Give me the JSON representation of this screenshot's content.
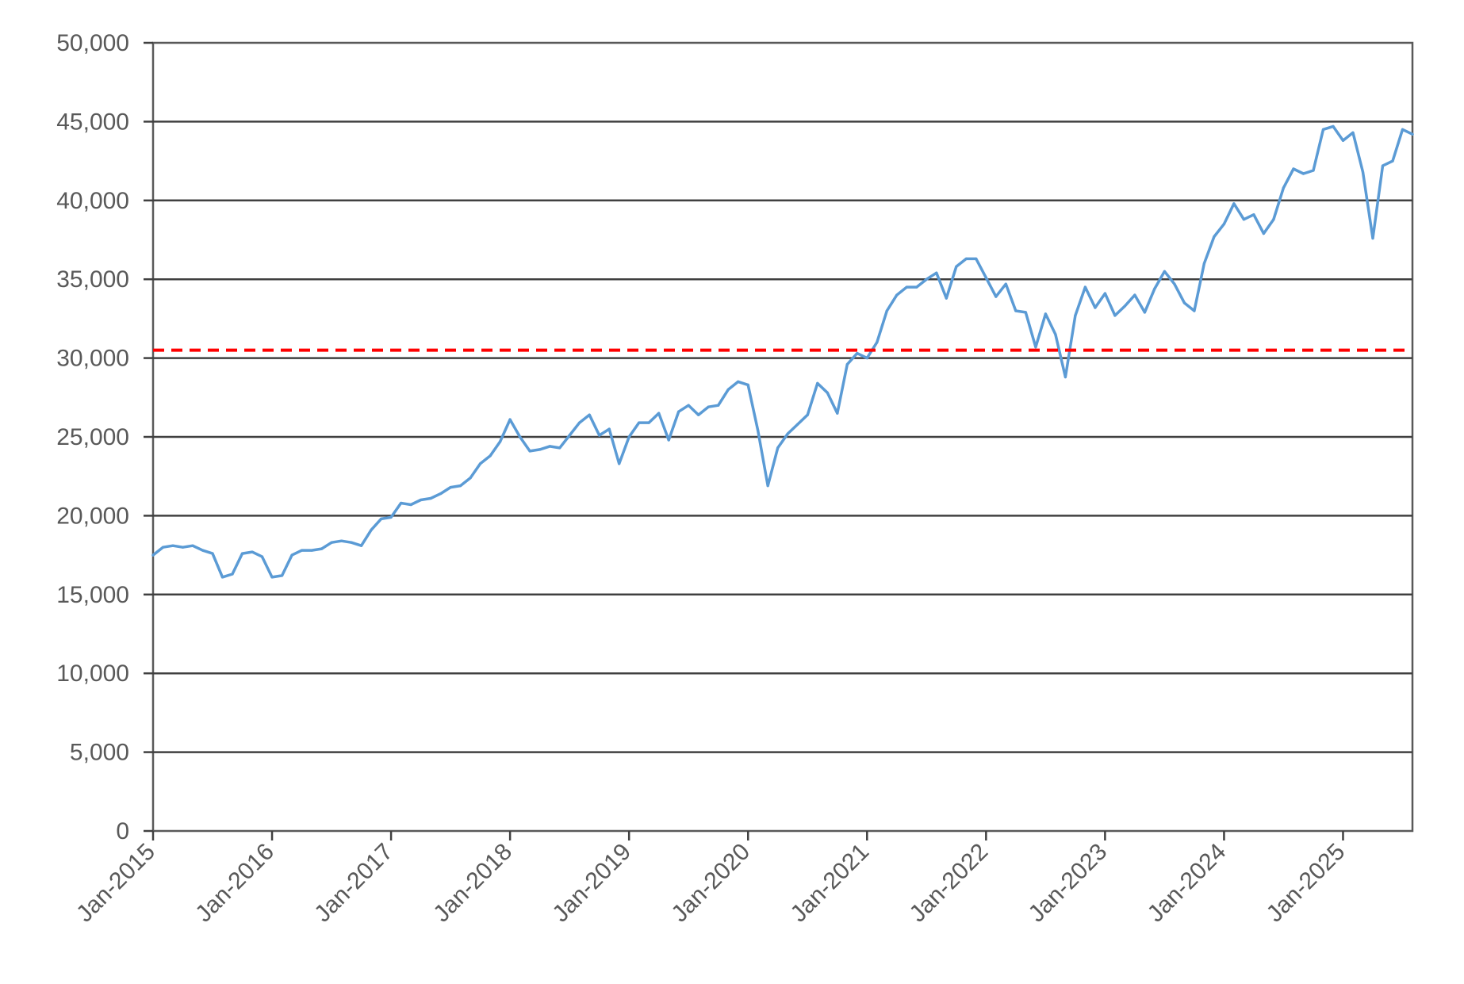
{
  "chart_data": {
    "type": "line",
    "title": "",
    "xlabel": "",
    "ylabel": "",
    "ylim": [
      0,
      50000
    ],
    "xlim": [
      "2015-01",
      "2025-08"
    ],
    "grid": true,
    "legend": "none",
    "y_ticks": [
      "0",
      "5,000",
      "10,000",
      "15,000",
      "20,000",
      "25,000",
      "30,000",
      "35,000",
      "40,000",
      "45,000",
      "50,000"
    ],
    "x_ticks": [
      "Jan-2015",
      "Jan-2016",
      "Jan-2017",
      "Jan-2018",
      "Jan-2019",
      "Jan-2020",
      "Jan-2021",
      "Jan-2022",
      "Jan-2023",
      "Jan-2024",
      "Jan-2025"
    ],
    "reference_line": {
      "value": 30500,
      "style": "dashed",
      "color": "#ff0000"
    },
    "series": [
      {
        "color": "#5b9bd5",
        "x": [
          "2015-01",
          "2015-02",
          "2015-03",
          "2015-04",
          "2015-05",
          "2015-06",
          "2015-07",
          "2015-08",
          "2015-09",
          "2015-10",
          "2015-11",
          "2015-12",
          "2016-01",
          "2016-02",
          "2016-03",
          "2016-04",
          "2016-05",
          "2016-06",
          "2016-07",
          "2016-08",
          "2016-09",
          "2016-10",
          "2016-11",
          "2016-12",
          "2017-01",
          "2017-02",
          "2017-03",
          "2017-04",
          "2017-05",
          "2017-06",
          "2017-07",
          "2017-08",
          "2017-09",
          "2017-10",
          "2017-11",
          "2017-12",
          "2018-01",
          "2018-02",
          "2018-03",
          "2018-04",
          "2018-05",
          "2018-06",
          "2018-07",
          "2018-08",
          "2018-09",
          "2018-10",
          "2018-11",
          "2018-12",
          "2019-01",
          "2019-02",
          "2019-03",
          "2019-04",
          "2019-05",
          "2019-06",
          "2019-07",
          "2019-08",
          "2019-09",
          "2019-10",
          "2019-11",
          "2019-12",
          "2020-01",
          "2020-02",
          "2020-03",
          "2020-04",
          "2020-05",
          "2020-06",
          "2020-07",
          "2020-08",
          "2020-09",
          "2020-10",
          "2020-11",
          "2020-12",
          "2021-01",
          "2021-02",
          "2021-03",
          "2021-04",
          "2021-05",
          "2021-06",
          "2021-07",
          "2021-08",
          "2021-09",
          "2021-10",
          "2021-11",
          "2021-12",
          "2022-01",
          "2022-02",
          "2022-03",
          "2022-04",
          "2022-05",
          "2022-06",
          "2022-07",
          "2022-08",
          "2022-09",
          "2022-10",
          "2022-11",
          "2022-12",
          "2023-01",
          "2023-02",
          "2023-03",
          "2023-04",
          "2023-05",
          "2023-06",
          "2023-07",
          "2023-08",
          "2023-09",
          "2023-10",
          "2023-11",
          "2023-12",
          "2024-01",
          "2024-02",
          "2024-03",
          "2024-04",
          "2024-05",
          "2024-06",
          "2024-07",
          "2024-08",
          "2024-09",
          "2024-10",
          "2024-11",
          "2024-12",
          "2025-01",
          "2025-02",
          "2025-03",
          "2025-04",
          "2025-05",
          "2025-06",
          "2025-07",
          "2025-08"
        ],
        "values": [
          17500,
          18000,
          18100,
          18000,
          18100,
          17800,
          17600,
          16100,
          16300,
          17600,
          17700,
          17400,
          16100,
          16200,
          17500,
          17800,
          17800,
          17900,
          18300,
          18400,
          18300,
          18100,
          19100,
          19800,
          19900,
          20800,
          20700,
          21000,
          21100,
          21400,
          21800,
          21900,
          22400,
          23300,
          23800,
          24700,
          26100,
          25000,
          24100,
          24200,
          24400,
          24300,
          25100,
          25900,
          26400,
          25100,
          25500,
          23300,
          25000,
          25900,
          25900,
          26500,
          24800,
          26600,
          27000,
          26400,
          26900,
          27000,
          28000,
          28500,
          28300,
          25400,
          21900,
          24300,
          25200,
          25800,
          26400,
          28400,
          27800,
          26500,
          29600,
          30300,
          30000,
          31000,
          33000,
          34000,
          34500,
          34500,
          35000,
          35400,
          33800,
          35800,
          36300,
          36300,
          35100,
          33900,
          34700,
          33000,
          32900,
          30700,
          32800,
          31500,
          28800,
          32700,
          34500,
          33200,
          34100,
          32700,
          33300,
          34000,
          32900,
          34400,
          35500,
          34700,
          33500,
          33000,
          36000,
          37700,
          38500,
          39800,
          38800,
          39100,
          37900,
          38800,
          40800,
          42000,
          41700,
          41900,
          44500,
          44700,
          43800,
          44300,
          41800,
          37600,
          42200,
          42500,
          44500,
          44200
        ]
      }
    ]
  }
}
